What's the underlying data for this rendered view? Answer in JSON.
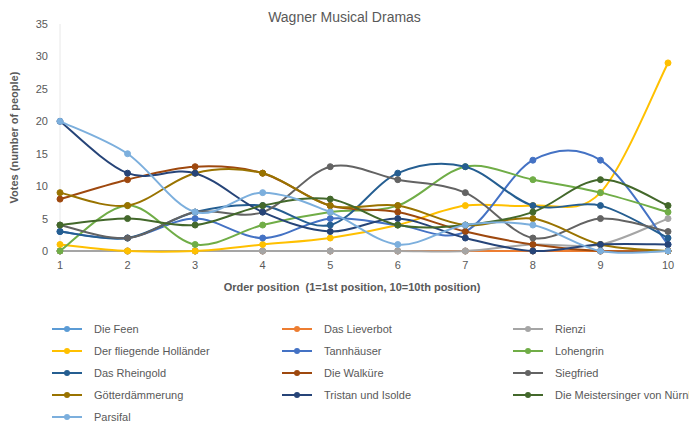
{
  "chart_data": {
    "type": "line",
    "title": "Wagner Musical Dramas",
    "x_label": "Order position  (1=1st position, 10=10th position)",
    "y_label": "Votes (number of people)",
    "x": [
      1,
      2,
      3,
      4,
      5,
      6,
      7,
      8,
      9,
      10
    ],
    "xlim": [
      1,
      10
    ],
    "xticks": [
      1,
      2,
      3,
      4,
      5,
      6,
      7,
      8,
      9,
      10
    ],
    "ylim": [
      0,
      35
    ],
    "yticks": [
      0,
      5,
      10,
      15,
      20,
      25,
      30,
      35
    ],
    "grid": false,
    "legend": "bottom",
    "marker": "circle",
    "line_style": "smooth",
    "series": [
      {
        "name": "Die Feen",
        "color": "#5b9bd5",
        "values": [
          0,
          0,
          0,
          0,
          0,
          0,
          0,
          0,
          0,
          0
        ]
      },
      {
        "name": "Das Lieverbot",
        "color": "#ed7d31",
        "values": [
          0,
          0,
          0,
          0,
          0,
          0,
          0,
          0,
          0,
          0
        ]
      },
      {
        "name": "Rienzi",
        "color": "#a5a5a5",
        "values": [
          0,
          0,
          0,
          0,
          0,
          0,
          0,
          1,
          1,
          5
        ]
      },
      {
        "name": "Der fliegende Holländer",
        "color": "#ffc000",
        "values": [
          1,
          0,
          0,
          1,
          2,
          4,
          7,
          7,
          9,
          29
        ]
      },
      {
        "name": "Tannhäuser",
        "color": "#4472c4",
        "values": [
          3,
          2,
          5,
          2,
          5,
          4,
          3,
          14,
          14,
          1
        ]
      },
      {
        "name": "Lohengrin",
        "color": "#70ad47",
        "values": [
          0,
          7,
          1,
          4,
          6,
          7,
          13,
          11,
          9,
          6
        ]
      },
      {
        "name": "Das Rheingold",
        "color": "#255e91",
        "values": [
          3,
          2,
          6,
          7,
          4,
          12,
          13,
          7,
          7,
          2
        ]
      },
      {
        "name": "Die Walküre",
        "color": "#9e480e",
        "values": [
          8,
          11,
          13,
          12,
          7,
          6,
          3,
          1,
          0,
          0
        ]
      },
      {
        "name": "Siegfried",
        "color": "#636363",
        "values": [
          4,
          2,
          6,
          6,
          13,
          11,
          9,
          2,
          5,
          3
        ]
      },
      {
        "name": "Götterdämmerung",
        "color": "#997300",
        "values": [
          9,
          7,
          12,
          12,
          7,
          7,
          4,
          5,
          1,
          0
        ]
      },
      {
        "name": "Tristan und Isolde",
        "color": "#264478",
        "values": [
          20,
          12,
          12,
          6,
          3,
          5,
          2,
          0,
          1,
          1
        ]
      },
      {
        "name": "Die Meistersinger von Nürnberg",
        "color": "#43682b",
        "values": [
          4,
          5,
          4,
          7,
          8,
          4,
          4,
          6,
          11,
          7
        ]
      },
      {
        "name": "Parsifal",
        "color": "#7cafdd",
        "values": [
          20,
          15,
          6,
          9,
          6,
          1,
          4,
          4,
          0,
          0
        ]
      }
    ]
  }
}
